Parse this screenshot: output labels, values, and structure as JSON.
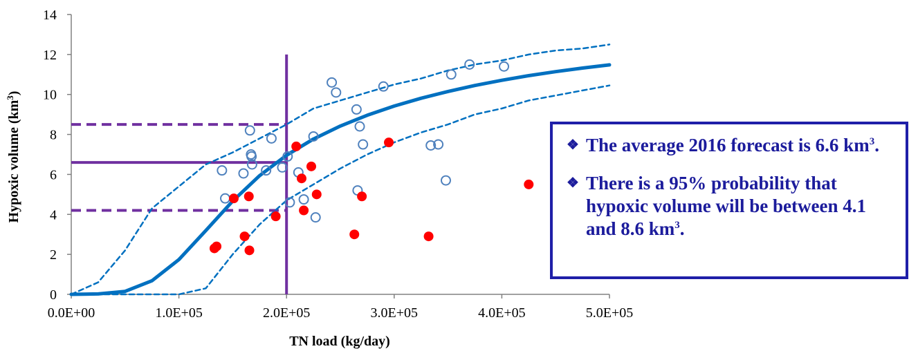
{
  "chart_data": {
    "type": "scatter",
    "xlabel": "TN load (kg/day)",
    "ylabel_main": "Hypoxic  volume (km",
    "ylabel_sup": "3",
    "ylabel_end": ")",
    "xlim": [
      0,
      500000
    ],
    "ylim": [
      0,
      14
    ],
    "x_ticks": [
      0,
      100000,
      200000,
      300000,
      400000,
      500000
    ],
    "x_tick_labels": [
      "0.0E+00",
      "1.0E+05",
      "2.0E+05",
      "3.0E+05",
      "4.0E+05",
      "5.0E+05"
    ],
    "y_ticks": [
      0,
      2,
      4,
      6,
      8,
      10,
      12,
      14
    ],
    "y_tick_labels": [
      "0",
      "2",
      "4",
      "6",
      "8",
      "10",
      "12",
      "14"
    ],
    "grid": false,
    "series": [
      {
        "marker": "open-circle",
        "color": "#4f81bd",
        "points": [
          [
            140000,
            6.2
          ],
          [
            143000,
            4.8
          ],
          [
            160000,
            6.05
          ],
          [
            166000,
            8.2
          ],
          [
            167000,
            7.0
          ],
          [
            167500,
            6.9
          ],
          [
            168000,
            6.5
          ],
          [
            181000,
            6.2
          ],
          [
            186000,
            7.8
          ],
          [
            196000,
            6.35
          ],
          [
            201000,
            6.9
          ],
          [
            203000,
            4.6
          ],
          [
            211000,
            6.1
          ],
          [
            216000,
            4.75
          ],
          [
            225000,
            7.9
          ],
          [
            227000,
            3.85
          ],
          [
            242000,
            10.6
          ],
          [
            246000,
            10.1
          ],
          [
            265000,
            9.25
          ],
          [
            266000,
            5.2
          ],
          [
            268000,
            8.4
          ],
          [
            271000,
            7.5
          ],
          [
            290000,
            10.4
          ],
          [
            334000,
            7.45
          ],
          [
            341000,
            7.5
          ],
          [
            348000,
            5.7
          ],
          [
            353000,
            11.0
          ],
          [
            370000,
            11.5
          ],
          [
            402000,
            11.4
          ]
        ]
      },
      {
        "marker": "filled-circle",
        "color": "#ff0000",
        "points": [
          [
            133000,
            2.3
          ],
          [
            135000,
            2.4
          ],
          [
            151000,
            4.8
          ],
          [
            161000,
            2.9
          ],
          [
            165000,
            4.9
          ],
          [
            165500,
            2.2
          ],
          [
            190000,
            3.9
          ],
          [
            209000,
            7.4
          ],
          [
            214000,
            5.8
          ],
          [
            216000,
            4.2
          ],
          [
            223000,
            6.4
          ],
          [
            228000,
            5.0
          ],
          [
            263000,
            3.0
          ],
          [
            270000,
            4.9
          ],
          [
            295000,
            7.6
          ],
          [
            332000,
            2.9
          ],
          [
            425000,
            5.5
          ]
        ]
      },
      {
        "marker": "line",
        "color": "#0070c0",
        "x": [
          0,
          25000,
          50000,
          75000,
          100000,
          125000,
          150000,
          175000,
          200000,
          225000,
          250000,
          275000,
          300000,
          325000,
          350000,
          375000,
          400000,
          425000,
          450000,
          475000,
          500000
        ],
        "values": [
          0,
          0.02,
          0.15,
          0.68,
          1.74,
          3.19,
          4.67,
          5.94,
          6.96,
          7.77,
          8.42,
          8.96,
          9.42,
          9.81,
          10.15,
          10.45,
          10.71,
          10.94,
          11.14,
          11.32,
          11.48
        ]
      },
      {
        "marker": "dashed-line",
        "color": "#0070c0",
        "x": [
          0,
          25000,
          50000,
          75000,
          100000,
          125000,
          150000,
          175000,
          200000,
          225000,
          250000,
          275000,
          300000,
          325000,
          350000,
          375000,
          400000,
          425000,
          450000,
          475000,
          500000
        ],
        "values": [
          0,
          0.6,
          2.2,
          4.3,
          5.4,
          6.5,
          7.1,
          7.8,
          8.5,
          9.3,
          9.7,
          10.1,
          10.5,
          10.8,
          11.2,
          11.5,
          11.7,
          12.0,
          12.2,
          12.3,
          12.5
        ]
      },
      {
        "marker": "dashed-line",
        "color": "#0070c0",
        "x": [
          0,
          50000,
          100000,
          125000,
          150000,
          175000,
          200000,
          225000,
          250000,
          275000,
          300000,
          325000,
          350000,
          375000,
          400000,
          425000,
          450000,
          475000,
          500000
        ],
        "values": [
          0,
          0,
          0,
          0.3,
          2.0,
          3.5,
          4.7,
          5.5,
          6.3,
          7.0,
          7.6,
          8.1,
          8.5,
          9.0,
          9.3,
          9.7,
          9.95,
          10.2,
          10.45
        ]
      }
    ],
    "reference_lines": [
      {
        "type": "vertical",
        "x": 200000,
        "y0": 0,
        "y1": 12,
        "style": "solid",
        "color": "#7030a0"
      },
      {
        "type": "horizontal",
        "y": 6.6,
        "x0": 0,
        "x1": 200000,
        "style": "solid",
        "color": "#7030a0"
      },
      {
        "type": "horizontal",
        "y": 8.5,
        "x0": 0,
        "x1": 200000,
        "style": "dashed",
        "color": "#7030a0"
      },
      {
        "type": "horizontal",
        "y": 4.2,
        "x0": 0,
        "x1": 200000,
        "style": "dashed",
        "color": "#7030a0"
      }
    ]
  },
  "callout": {
    "bullet_icon": "diamond-bullet-icon",
    "items": [
      {
        "text": "The average 2016 forecast is 6.6 km",
        "sup": "3",
        "end": "."
      },
      {
        "text": "There is a 95% probability that hypoxic volume will be between 4.1 and 8.6 km",
        "sup": "3",
        "end": "."
      }
    ],
    "border_color": "#1f1fa8",
    "text_color": "#1c1c9c"
  }
}
